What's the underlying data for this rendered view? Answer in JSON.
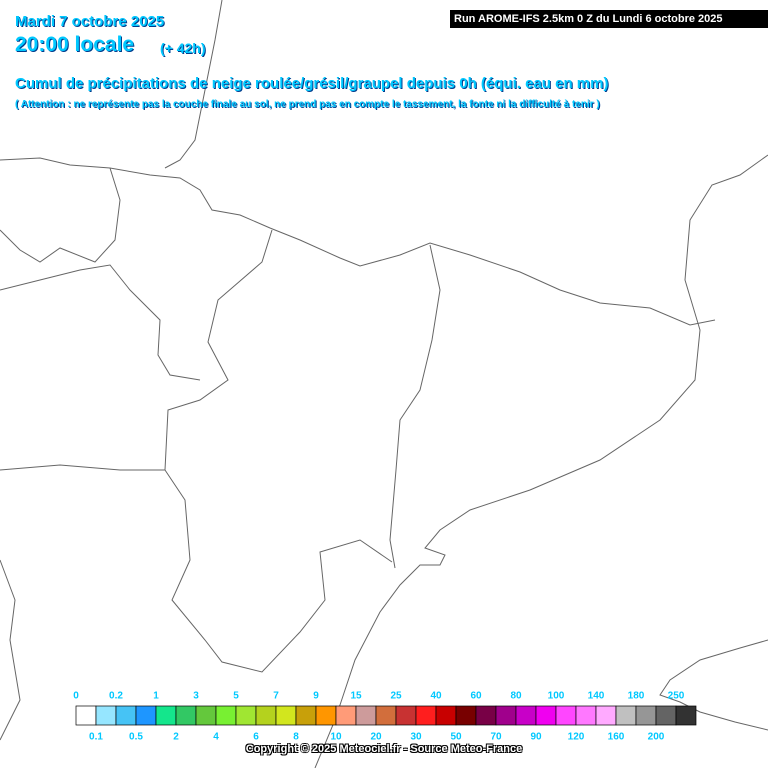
{
  "header": {
    "date": "Mardi 7 octobre 2025",
    "time": "20:00 locale",
    "lead": "(+ 42h)",
    "run": "Run AROME-IFS 2.5km 0 Z du Lundi 6 octobre 2025",
    "title": "Cumul de précipitations de neige roulée/grésil/graupel depuis 0h (équi. eau en mm)",
    "note": "( Attention : ne représente pas la couche finale au sol, ne prend pas en compte le tassement, la fonte ni la difficulté à tenir )"
  },
  "legend": {
    "thresholds": [
      0,
      0.1,
      0.2,
      0.5,
      1,
      2,
      3,
      4,
      5,
      6,
      7,
      8,
      9,
      10,
      15,
      20,
      25,
      30,
      40,
      50,
      60,
      70,
      80,
      90,
      100,
      120,
      140,
      160,
      180,
      200,
      250
    ],
    "colors": [
      "#ffffff",
      "#96e6ff",
      "#46c3f5",
      "#1e96ff",
      "#14e68c",
      "#32c864",
      "#64c83c",
      "#78f032",
      "#a0e632",
      "#b4d21e",
      "#d2e61e",
      "#c8a00a",
      "#ff9600",
      "#ff9b78",
      "#cd9b9b",
      "#d26e3c",
      "#c83232",
      "#ff1e1e",
      "#c80000",
      "#780000",
      "#780046",
      "#a0008c",
      "#c800c8",
      "#f000f0",
      "#ff46ff",
      "#ff78ff",
      "#ffaaff",
      "#c0c0c0",
      "#969696",
      "#646464",
      "#323232"
    ]
  },
  "footer": {
    "copyright": "Copyright © 2025 Meteociel.fr - Source Meteo-France"
  }
}
